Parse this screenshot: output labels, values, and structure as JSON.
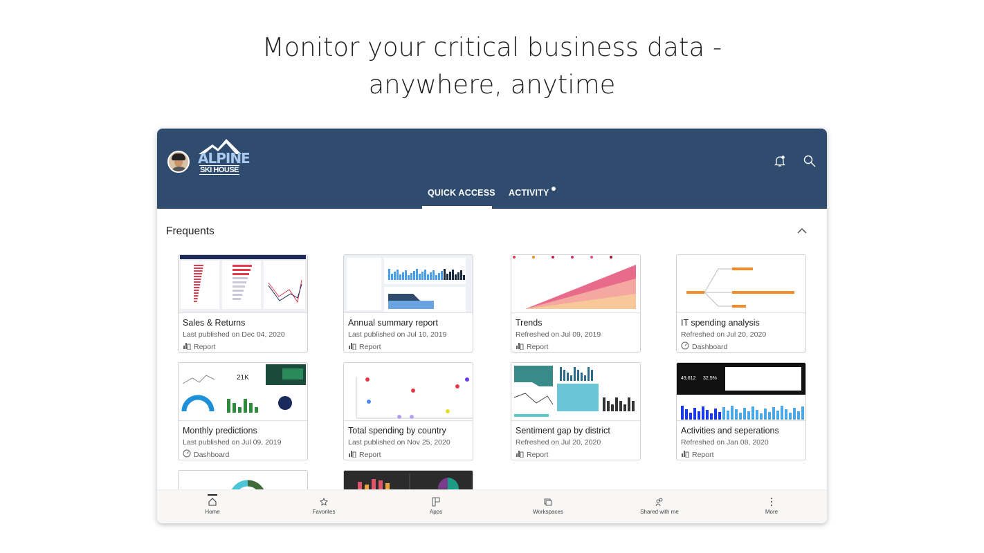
{
  "headline": {
    "line1": "Monitor your critical business data -",
    "line2": "anywhere, anytime"
  },
  "header": {
    "logo": "Alpine Ski House",
    "logo_top": "ALPINE",
    "logo_bottom": "SKI HOUSE",
    "bg_color": "#2f4b6e",
    "tabs": [
      {
        "label": "QUICK ACCESS",
        "active": true
      },
      {
        "label": "ACTIVITY",
        "has_notification_dot": true
      }
    ],
    "icons": [
      "notification-bell-icon",
      "search-icon"
    ]
  },
  "section": {
    "title": "Frequents",
    "collapse_icon": "chevron-up-icon"
  },
  "cards": [
    {
      "title": "Sales & Returns",
      "subtitle": "Last published on Dec 04, 2020",
      "type": "Report"
    },
    {
      "title": "Annual summary report",
      "subtitle": "Last published on Jul 10, 2019",
      "type": "Report"
    },
    {
      "title": "Trends",
      "subtitle": "Refreshed on Jul 09, 2019",
      "type": "Report"
    },
    {
      "title": "IT spending analysis",
      "subtitle": "Refreshed on Jul 20, 2020",
      "type": "Dashboard"
    },
    {
      "title": "Monthly predictions",
      "subtitle": "Last published on Jul 09, 2019",
      "type": "Dashboard"
    },
    {
      "title": "Total spending by country",
      "subtitle": "Last published on Nov 25, 2020",
      "type": "Report"
    },
    {
      "title": "Sentiment gap by district",
      "subtitle": "Refreshed on Jul 20, 2020",
      "type": "Report"
    },
    {
      "title": "Activities and seperations",
      "subtitle": "Refreshed on Jan 08, 2020",
      "type": "Report"
    }
  ],
  "bottom_nav": [
    {
      "label": "Home",
      "icon": "home-icon",
      "active": true
    },
    {
      "label": "Favorites",
      "icon": "star-icon"
    },
    {
      "label": "Apps",
      "icon": "apps-icon"
    },
    {
      "label": "Workspaces",
      "icon": "workspaces-icon"
    },
    {
      "label": "Shared with me",
      "icon": "shared-icon"
    },
    {
      "label": "More",
      "icon": "more-icon"
    }
  ]
}
